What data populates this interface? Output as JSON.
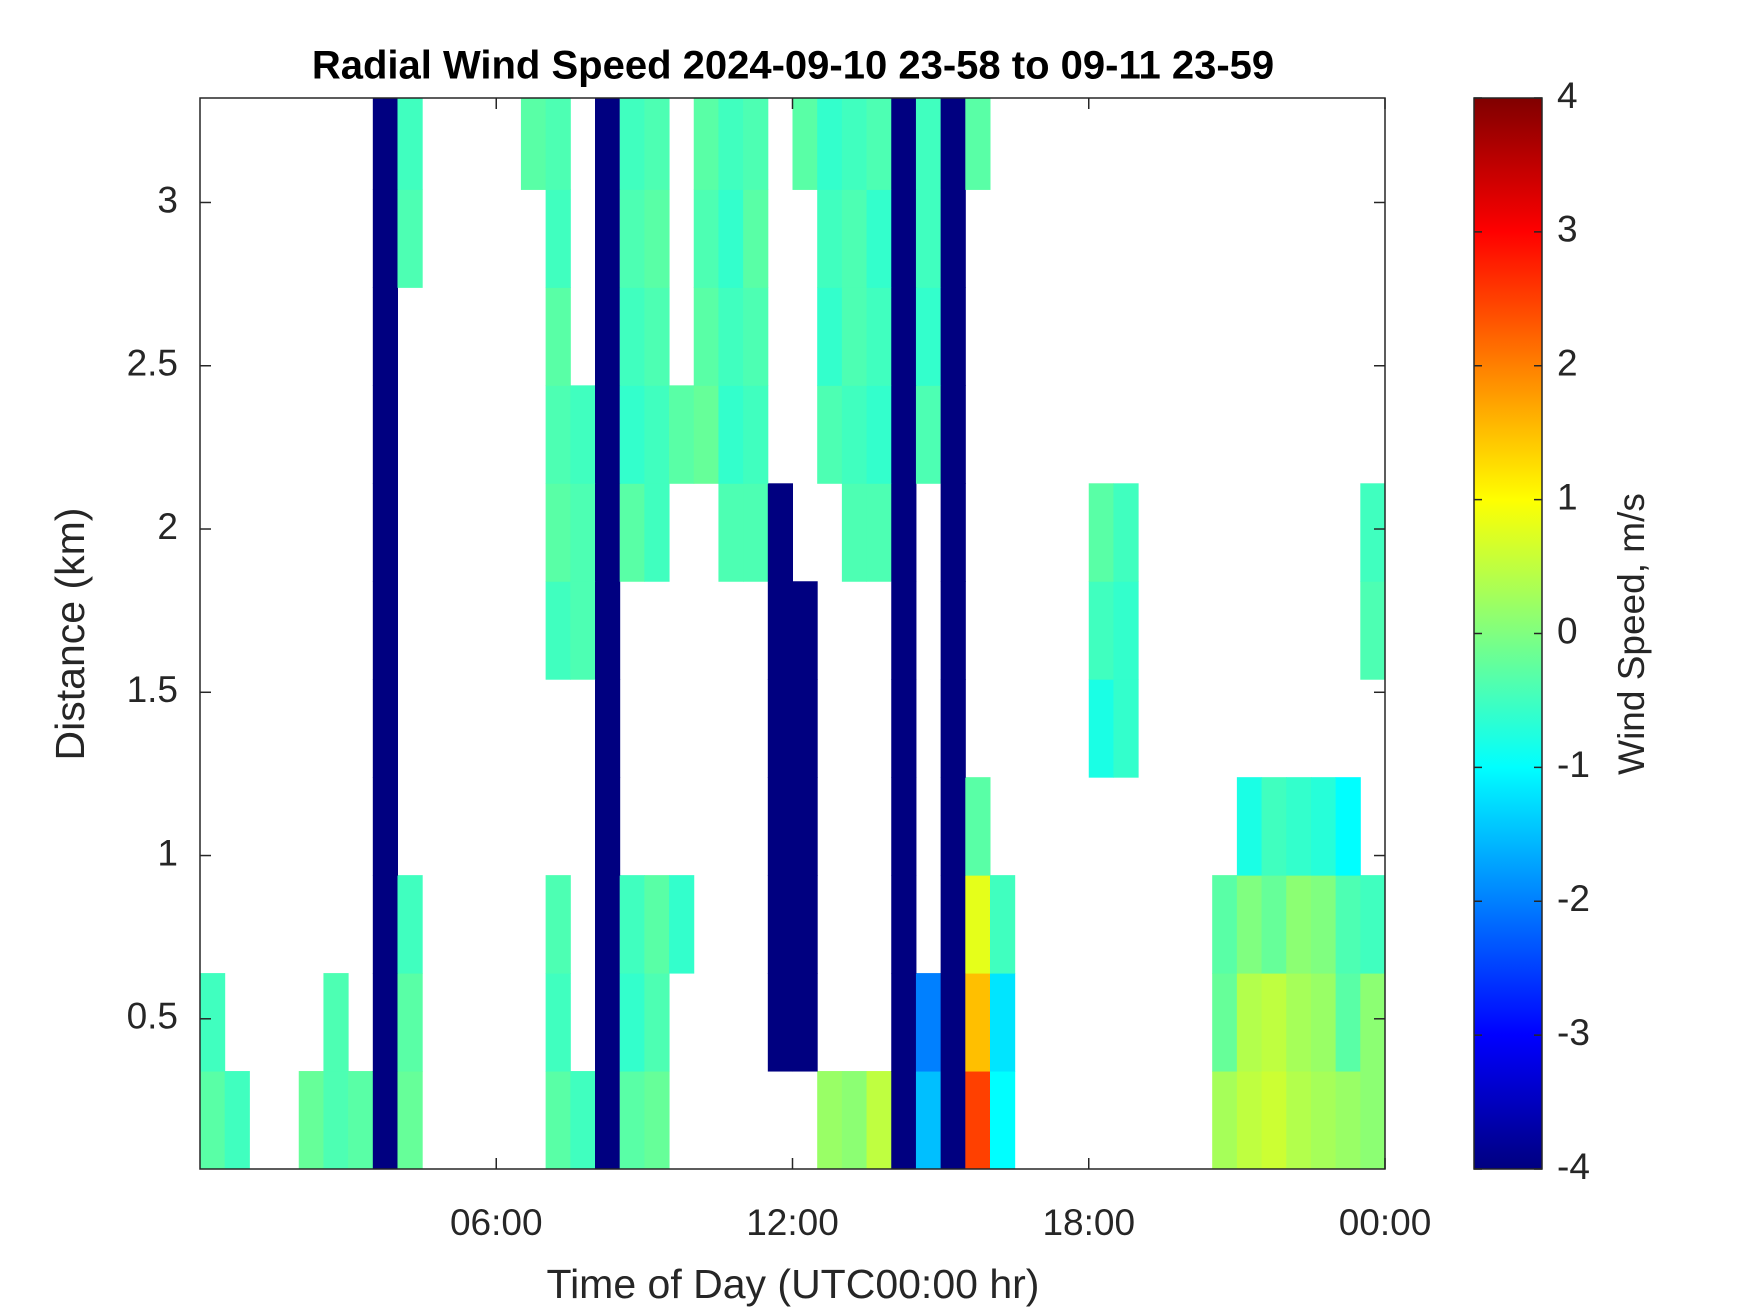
{
  "chart_data": {
    "type": "heatmap",
    "title": "Radial Wind Speed 2024-09-10 23-58 to 09-11 23-59",
    "xlabel": "Time of Day (UTC00:00 hr)",
    "ylabel": "Distance (km)",
    "colorbar_label": "Wind Speed, m/s",
    "colormap": "jet",
    "xlim": [
      0,
      24
    ],
    "xticks": [
      {
        "value": 6,
        "label": "06:00"
      },
      {
        "value": 12,
        "label": "12:00"
      },
      {
        "value": 18,
        "label": "18:00"
      },
      {
        "value": 24,
        "label": "00:00"
      }
    ],
    "ylim": [
      0.04,
      3.32
    ],
    "yticks": [
      0.5,
      1,
      1.5,
      2,
      2.5,
      3
    ],
    "clim": [
      -4,
      4
    ],
    "cticks": [
      -4,
      -3,
      -2,
      -1,
      0,
      1,
      2,
      3,
      4
    ],
    "xbins": [
      0,
      0.5,
      1,
      1.5,
      2,
      2.5,
      3,
      3.5,
      4,
      4.5,
      5,
      5.5,
      6,
      6.5,
      7,
      7.5,
      8,
      8.5,
      9,
      9.5,
      10,
      10.5,
      11,
      11.5,
      12,
      12.5,
      13,
      13.5,
      14,
      14.5,
      15,
      15.5,
      16,
      16.5,
      17,
      17.5,
      18,
      18.5,
      19,
      19.5,
      20,
      20.5,
      21,
      21.5,
      22,
      22.5,
      23,
      23.5,
      24
    ],
    "ybins": [
      0.04,
      0.34,
      0.64,
      0.94,
      1.24,
      1.54,
      1.84,
      2.14,
      2.44,
      2.74,
      3.04,
      3.32
    ],
    "z": [
      [
        -0.3,
        -0.5,
        null,
        null,
        -0.2,
        -0.4,
        -0.3,
        -4,
        -0.2,
        null,
        null,
        null,
        null,
        null,
        -0.3,
        -0.5,
        -4,
        -0.3,
        -0.2,
        null,
        null,
        null,
        null,
        null,
        null,
        0.2,
        0.1,
        0.5,
        -4,
        -1.5,
        -4,
        2.5,
        -1,
        null,
        null,
        null,
        null,
        null,
        null,
        null,
        null,
        0.3,
        0.5,
        0.6,
        0.4,
        0.3,
        0.2,
        0.1
      ],
      [
        -0.5,
        null,
        null,
        null,
        null,
        -0.4,
        null,
        -4,
        -0.3,
        null,
        null,
        null,
        null,
        null,
        -0.5,
        null,
        -4,
        -0.6,
        -0.4,
        null,
        null,
        null,
        null,
        -4,
        -4,
        null,
        null,
        null,
        -4,
        -2,
        -4,
        1.5,
        -1.2,
        null,
        null,
        null,
        null,
        null,
        null,
        null,
        null,
        -0.2,
        0.4,
        0.5,
        0.3,
        0.2,
        -0.3,
        0.1
      ],
      [
        null,
        null,
        null,
        null,
        null,
        null,
        null,
        -4,
        -0.5,
        null,
        null,
        null,
        null,
        null,
        -0.4,
        null,
        -4,
        -0.5,
        -0.3,
        -0.6,
        null,
        null,
        null,
        -4,
        -4,
        null,
        null,
        null,
        -4,
        null,
        -4,
        0.8,
        -0.5,
        null,
        null,
        null,
        null,
        null,
        null,
        null,
        null,
        -0.3,
        0,
        -0.2,
        0.1,
        0,
        -0.4,
        -0.5
      ],
      [
        null,
        null,
        null,
        null,
        null,
        null,
        null,
        -4,
        null,
        null,
        null,
        null,
        null,
        null,
        null,
        null,
        -4,
        null,
        null,
        null,
        null,
        null,
        null,
        -4,
        -4,
        null,
        null,
        null,
        -4,
        null,
        -4,
        -0.3,
        null,
        null,
        null,
        null,
        null,
        null,
        null,
        null,
        null,
        null,
        -0.8,
        -0.5,
        -0.6,
        -0.7,
        -1,
        null
      ],
      [
        null,
        null,
        null,
        null,
        null,
        null,
        null,
        -4,
        null,
        null,
        null,
        null,
        null,
        null,
        null,
        null,
        -4,
        null,
        null,
        null,
        null,
        null,
        null,
        -4,
        -4,
        null,
        null,
        null,
        -4,
        null,
        -4,
        null,
        null,
        null,
        null,
        null,
        -0.8,
        -0.6,
        null,
        null,
        null,
        null,
        null,
        null,
        null,
        null,
        null,
        null
      ],
      [
        null,
        null,
        null,
        null,
        null,
        null,
        null,
        -4,
        null,
        null,
        null,
        null,
        null,
        null,
        -0.5,
        -0.4,
        -4,
        null,
        null,
        null,
        null,
        null,
        null,
        -4,
        -4,
        null,
        null,
        null,
        -4,
        null,
        -4,
        null,
        null,
        null,
        null,
        null,
        -0.5,
        -0.6,
        null,
        null,
        null,
        null,
        null,
        null,
        null,
        null,
        null,
        -0.4
      ],
      [
        null,
        null,
        null,
        null,
        null,
        null,
        null,
        -4,
        null,
        null,
        null,
        null,
        null,
        null,
        -0.3,
        -0.4,
        -4,
        -0.3,
        -0.5,
        null,
        null,
        -0.4,
        -0.4,
        -4,
        null,
        null,
        -0.4,
        -0.4,
        -4,
        null,
        -4,
        null,
        null,
        null,
        null,
        null,
        -0.3,
        -0.5,
        null,
        null,
        null,
        null,
        null,
        null,
        null,
        null,
        null,
        -0.5
      ],
      [
        null,
        null,
        null,
        null,
        null,
        null,
        null,
        -4,
        null,
        null,
        null,
        null,
        null,
        null,
        -0.4,
        -0.5,
        -4,
        -0.6,
        -0.5,
        -0.3,
        -0.2,
        -0.6,
        -0.5,
        null,
        null,
        -0.4,
        -0.5,
        -0.6,
        -4,
        -0.4,
        -4,
        null,
        null,
        null,
        null,
        null,
        null,
        null,
        null,
        null,
        null,
        null,
        null,
        null,
        null,
        null,
        null,
        null
      ],
      [
        null,
        null,
        null,
        null,
        null,
        null,
        null,
        -4,
        null,
        null,
        null,
        null,
        null,
        null,
        -0.3,
        null,
        -4,
        -0.5,
        -0.4,
        null,
        -0.3,
        -0.5,
        -0.4,
        null,
        null,
        -0.6,
        -0.4,
        -0.5,
        -4,
        -0.6,
        -4,
        null,
        null,
        null,
        null,
        null,
        null,
        null,
        null,
        null,
        null,
        null,
        null,
        null,
        null,
        null,
        null,
        null
      ],
      [
        null,
        null,
        null,
        null,
        null,
        null,
        null,
        -4,
        -0.4,
        null,
        null,
        null,
        null,
        null,
        -0.5,
        null,
        -4,
        -0.4,
        -0.3,
        null,
        -0.4,
        -0.6,
        -0.3,
        null,
        null,
        -0.5,
        -0.4,
        -0.6,
        -4,
        -0.5,
        -4,
        null,
        null,
        null,
        null,
        null,
        null,
        null,
        null,
        null,
        null,
        null,
        null,
        null,
        null,
        null,
        null,
        null
      ],
      [
        null,
        null,
        null,
        null,
        null,
        null,
        null,
        -4,
        -0.5,
        null,
        null,
        null,
        null,
        -0.3,
        -0.4,
        null,
        -4,
        -0.5,
        -0.4,
        null,
        -0.3,
        -0.5,
        -0.4,
        null,
        -0.3,
        -0.6,
        -0.5,
        -0.4,
        -4,
        -0.5,
        -4,
        -0.3,
        null,
        null,
        null,
        null,
        null,
        null,
        null,
        null,
        null,
        null,
        null,
        null,
        null,
        null,
        null,
        null
      ]
    ]
  }
}
